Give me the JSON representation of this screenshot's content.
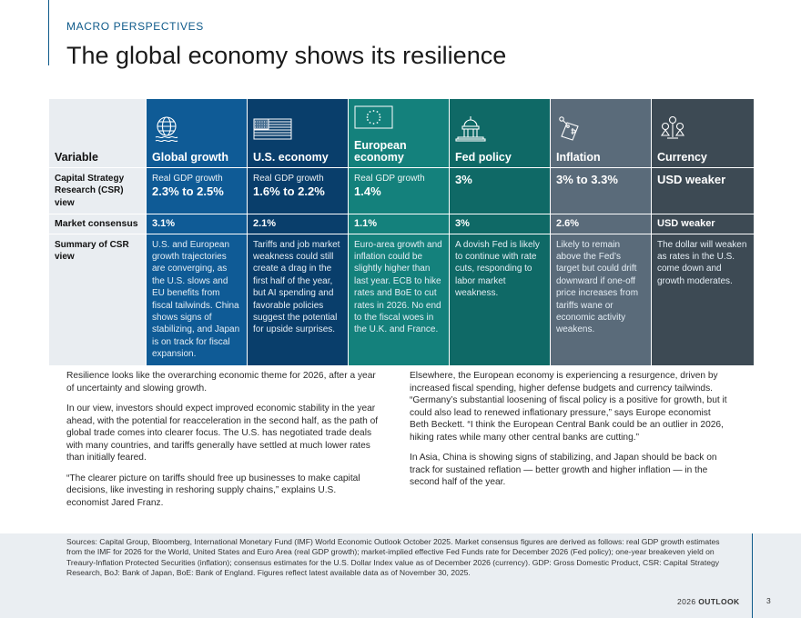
{
  "header": {
    "kicker": "MACRO PERSPECTIVES",
    "title": "The global economy shows its resilience"
  },
  "table": {
    "variable_header": "Variable",
    "columns": [
      {
        "label": "Global growth",
        "icon": "globe-icon"
      },
      {
        "label": "U.S. economy",
        "icon": "us-flag-icon"
      },
      {
        "label": "European economy",
        "icon": "eu-flag-icon"
      },
      {
        "label": "Fed policy",
        "icon": "capitol-building-icon"
      },
      {
        "label": "Inflation",
        "icon": "price-tag-icon"
      },
      {
        "label": "Currency",
        "icon": "currency-scale-icon"
      }
    ],
    "rows": {
      "csr": {
        "label": "Capital Strategy Research (CSR) view",
        "cells": [
          {
            "small": "Real GDP growth",
            "big": "2.3% to 2.5%"
          },
          {
            "small": "Real GDP growth",
            "big": "1.6% to 2.2%"
          },
          {
            "small": "Real GDP growth",
            "big": "1.4%"
          },
          {
            "small": "",
            "big": "3%"
          },
          {
            "small": "",
            "big": "3% to 3.3%"
          },
          {
            "small": "",
            "big": "USD weaker"
          }
        ]
      },
      "market": {
        "label": "Market consensus",
        "cells": [
          "3.1%",
          "2.1%",
          "1.1%",
          "3%",
          "2.6%",
          "USD weaker"
        ]
      },
      "summary": {
        "label": "Summary of CSR view",
        "cells": [
          "U.S. and European growth trajectories are converging, as the U.S. slows and EU benefits from fiscal tailwinds. China shows signs of stabilizing, and Japan is on track for fiscal expansion.",
          "Tariffs and job market weakness could still create a drag in the first half of the year, but AI spending and favorable policies suggest the potential for upside surprises.",
          "Euro-area growth and inflation could be slightly higher than last year. ECB to hike rates and BoE to cut rates in 2026. No end to the fiscal woes in the U.K. and France.",
          "A dovish Fed is likely to continue with rate cuts, responding to labor market weakness.",
          "Likely to remain above the Fed’s target but could drift downward if one-off price increases from tariffs wane or economic activity weakens.",
          "The dollar will weaken as rates in the U.S. come down and growth moderates."
        ]
      }
    }
  },
  "body": {
    "left": [
      "Resilience looks like the overarching economic theme for 2026, after a year of uncertainty and slowing growth.",
      "In our view, investors should expect improved economic stability in the year ahead, with the potential for reacceleration in the second half, as the path of global trade comes into clearer focus. The U.S. has negotiated trade deals with many countries, and tariffs generally have settled at much lower rates than initially feared.",
      "“The clearer picture on tariffs should free up businesses to make capital decisions, like investing in reshoring supply chains,” explains U.S. economist Jared Franz."
    ],
    "right": [
      "Elsewhere, the European economy is experiencing a resurgence, driven by increased fiscal spending, higher defense budgets and currency tailwinds. “Germany’s substantial loosening of fiscal policy is a positive for growth, but it could also lead to renewed inflationary pressure,” says Europe economist Beth Beckett. “I think the European Central Bank could be an outlier in 2026, hiking rates while many other central banks are cutting.”",
      "In Asia, China is showing signs of stabilizing, and Japan should be back on track for sustained reflation — better growth and higher inflation — in the second half of the year."
    ]
  },
  "footer": {
    "sources": "Sources: Capital Group, Bloomberg, International Monetary Fund (IMF) World Economic Outlook October 2025. Market consensus figures are derived as follows: real GDP growth estimates from the IMF for 2026 for the World, United States and Euro Area (real GDP growth); market-implied effective Fed Funds rate for December 2026 (Fed policy); one-year breakeven yield on Treaury-Inflation Protected Securities (inflation); consensus estimates for the U.S. Dollar Index value as of December 2026 (currency). GDP: Gross Domestic Product, CSR: Capital Strategy Research, BoJ: Bank of Japan, BoE: Bank of England. Figures reflect latest available data as of November 30, 2025.",
    "outlook_year": "2026",
    "outlook_word": "OUTLOOK",
    "page_number": "3"
  },
  "colors": {
    "accent": "#0e5a8a",
    "global_growth": "#0f5b96",
    "us_economy": "#093e6b",
    "european_economy": "#14817c",
    "fed_policy": "#0f6966",
    "inflation": "#5a6b7a",
    "currency": "#3d4a54",
    "variable_column": "#e9edf1",
    "footer_band": "#eaeef2"
  }
}
